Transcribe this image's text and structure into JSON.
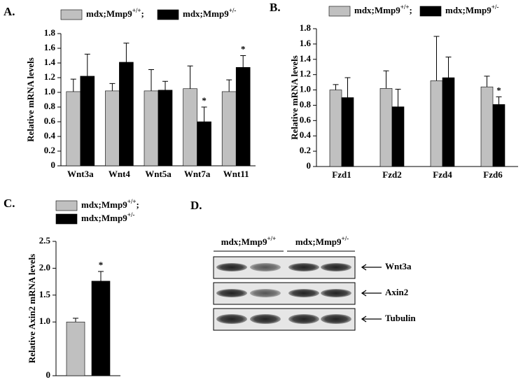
{
  "chart_data": [
    {
      "type": "bar",
      "panel": "A.",
      "y_label": "Relative mRNA levels",
      "categories": [
        "Wnt3a",
        "Wnt4",
        "Wnt5a",
        "Wnt7a",
        "Wnt11"
      ],
      "series": [
        {
          "name": "mdx;Mmp9+/+;",
          "color": "#c0c0c0",
          "values": [
            1.01,
            1.02,
            1.02,
            1.05,
            1.01
          ],
          "errors": [
            0.17,
            0.1,
            0.29,
            0.31,
            0.16
          ]
        },
        {
          "name": "mdx;Mmp9+/-",
          "color": "#000000",
          "values": [
            1.22,
            1.41,
            1.03,
            0.6,
            1.34
          ],
          "errors": [
            0.3,
            0.26,
            0.12,
            0.2,
            0.16
          ]
        }
      ],
      "annotations": [
        {
          "series": 1,
          "category": 3,
          "text": "*"
        },
        {
          "series": 1,
          "category": 4,
          "text": "*"
        }
      ],
      "ylim": [
        0,
        1.8
      ],
      "yticks": [
        0,
        0.2,
        0.4,
        0.6,
        0.8,
        {
          "value": 1,
          "label": "1.0"
        },
        1.2,
        1.4,
        1.6,
        1.8
      ]
    },
    {
      "type": "bar",
      "panel": "B.",
      "y_label": "Relative mRNA levels",
      "categories": [
        "Fzd1",
        "Fzd2",
        "Fzd4",
        "Fzd6"
      ],
      "series": [
        {
          "name": "mdx;Mmp9+/+;",
          "color": "#c0c0c0",
          "values": [
            1.0,
            1.02,
            1.12,
            1.04
          ],
          "errors": [
            0.07,
            0.23,
            0.58,
            0.14
          ]
        },
        {
          "name": "mdx;Mmp9+/-",
          "color": "#000000",
          "values": [
            0.9,
            0.78,
            1.16,
            0.81
          ],
          "errors": [
            0.26,
            0.23,
            0.27,
            0.1
          ]
        }
      ],
      "annotations": [
        {
          "series": 1,
          "category": 3,
          "text": "*"
        }
      ],
      "ylim": [
        0,
        1.8
      ],
      "yticks": [
        0,
        0.2,
        0.4,
        0.6,
        0.8,
        {
          "value": 1,
          "label": "1.0"
        },
        1.2,
        1.4,
        1.6,
        1.8
      ]
    },
    {
      "type": "bar",
      "panel": "C.",
      "y_label": "Relative Axin2 mRNA levels",
      "categories": [
        null
      ],
      "series": [
        {
          "name": "mdx;Mmp9+/+;",
          "color": "#c0c0c0",
          "values": [
            1.0
          ],
          "errors": [
            0.07
          ]
        },
        {
          "name": "mdx;Mmp9+/-",
          "color": "#000000",
          "values": [
            1.76
          ],
          "errors": [
            0.18
          ]
        }
      ],
      "annotations": [
        {
          "series": 1,
          "category": 0,
          "text": "*"
        }
      ],
      "ylim": [
        0,
        2.5
      ],
      "yticks": [
        0,
        {
          "value": 1,
          "label": "1.0"
        },
        1.5,
        {
          "value": 2,
          "label": "2.0"
        },
        2.5
      ]
    }
  ],
  "blot": {
    "panel": "D.",
    "groups": [
      "mdx;Mmp9+/+",
      "mdx;Mmp9+/-"
    ],
    "rows": [
      "Wnt3a",
      "Axin2",
      "Tubulin"
    ]
  }
}
